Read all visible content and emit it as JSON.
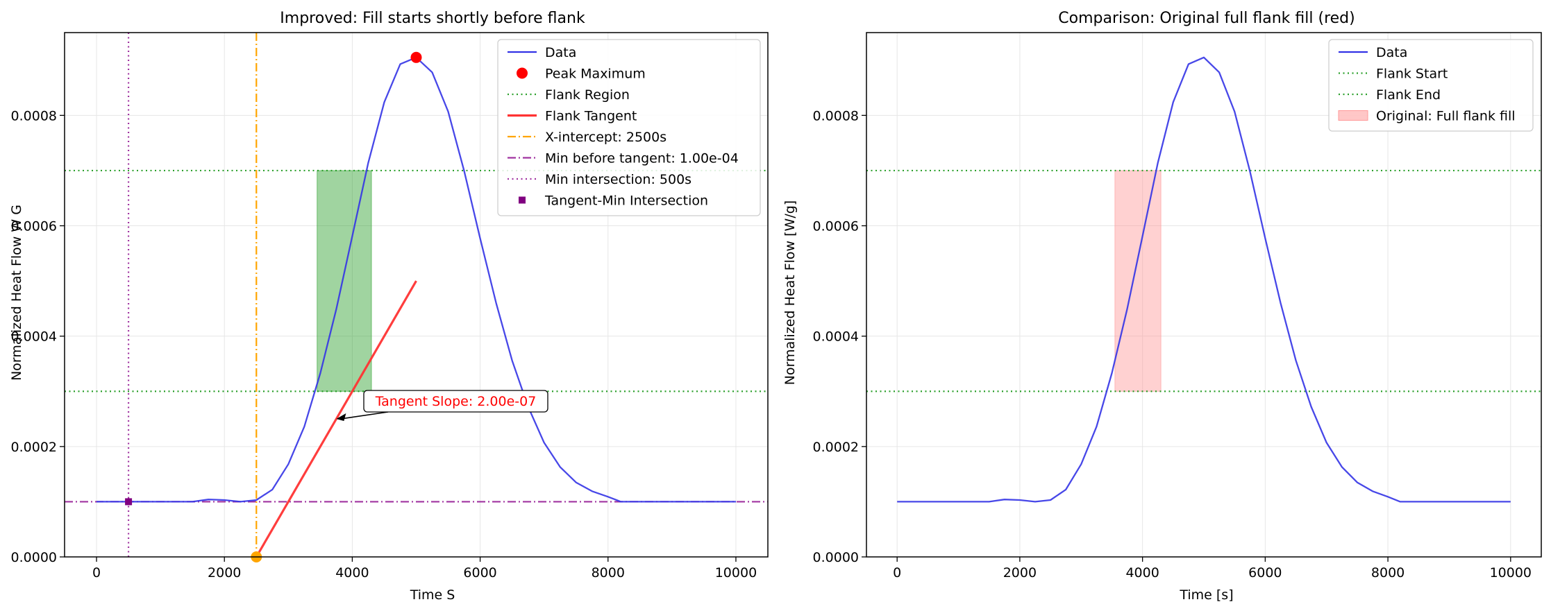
{
  "chart_data": [
    {
      "type": "line",
      "title": "Improved: Fill starts shortly before flank",
      "xlabel": "Time S",
      "ylabel": "Normalized Heat Flow W G",
      "xlim": [
        -500,
        10500
      ],
      "ylim": [
        0,
        0.00095
      ],
      "xticks": [
        "0",
        "2000",
        "4000",
        "6000",
        "8000",
        "10000"
      ],
      "yticks": [
        "0.0000",
        "0.0002",
        "0.0004",
        "0.0006",
        "0.0008"
      ],
      "grid": true,
      "legend_position": "top-right",
      "legend": [
        "Data",
        "Peak Maximum",
        "Flank Region",
        "Flank Tangent",
        "X-intercept: 2500s",
        "Min before tangent: 1.00e-04",
        "Min intersection: 500s",
        "Tangent-Min Intersection"
      ],
      "series": [
        {
          "name": "Data",
          "color": "#3333e6",
          "x": [
            0,
            250,
            500,
            750,
            1000,
            1250,
            1500,
            1750,
            2000,
            2250,
            2500,
            2750,
            3000,
            3250,
            3500,
            3750,
            4000,
            4250,
            4500,
            4750,
            5000,
            5250,
            5500,
            5750,
            6000,
            6250,
            6500,
            6750,
            7000,
            7250,
            7500,
            7750,
            8000,
            8200,
            8500,
            9000,
            9500,
            10000
          ],
          "y": [
            0.0001,
            0.0001,
            0.0001,
            0.0001,
            0.0001,
            0.0001,
            0.0001,
            0.000104,
            0.000103,
            0.0001,
            0.000103,
            0.000122,
            0.000168,
            0.000236,
            0.000333,
            0.000449,
            0.000581,
            0.000714,
            0.000824,
            0.000893,
            0.000905,
            0.000878,
            0.000807,
            0.000699,
            0.000577,
            0.00046,
            0.000356,
            0.000272,
            0.000207,
            0.000163,
            0.000135,
            0.000119,
            0.000109,
            0.0001,
            0.0001,
            0.0001,
            0.0001,
            0.0001
          ]
        },
        {
          "name": "Flank Tangent",
          "color": "#ff3333",
          "x": [
            2500,
            5000
          ],
          "y": [
            0,
            0.0005
          ]
        },
        {
          "name": "Peak Maximum",
          "color": "#ff0000",
          "x": [
            5000
          ],
          "y": [
            0.000905
          ]
        },
        {
          "name": "Tangent-Min Intersection",
          "color": "#800080",
          "x": [
            500
          ],
          "y": [
            0.0001
          ]
        }
      ],
      "hlines": [
        {
          "name": "Flank Region",
          "y": 0.0003,
          "color": "#2ca02c",
          "style": "dotted"
        },
        {
          "name": "Flank Region",
          "y": 0.0007,
          "color": "#2ca02c",
          "style": "dotted"
        },
        {
          "name": "Min before tangent: 1.00e-04",
          "y": 0.0001,
          "color": "#a033a0",
          "style": "dashdot"
        }
      ],
      "vlines": [
        {
          "name": "X-intercept: 2500s",
          "x": 2500,
          "color": "#ffa500",
          "style": "dashdot"
        },
        {
          "name": "Min intersection: 500s",
          "x": 500,
          "color": "#a033a0",
          "style": "dotted"
        }
      ],
      "fill": {
        "x0": 3450,
        "x1": 4300,
        "y0": 0.0003,
        "y1": 0.0007,
        "color": "#2ca02c"
      },
      "x_intercept_marker": {
        "x": 2500,
        "y": 0,
        "color": "#ffa500"
      },
      "annotation": {
        "text": "Tangent Slope: 2.00e-07",
        "x": 3750,
        "y": 0.00025
      }
    },
    {
      "type": "line",
      "title": "Comparison: Original full flank fill (red)",
      "xlabel": "Time [s]",
      "ylabel": "Normalized Heat Flow [W/g]",
      "xlim": [
        -500,
        10500
      ],
      "ylim": [
        0,
        0.00095
      ],
      "xticks": [
        "0",
        "2000",
        "4000",
        "6000",
        "8000",
        "10000"
      ],
      "yticks": [
        "0.0000",
        "0.0002",
        "0.0004",
        "0.0006",
        "0.0008"
      ],
      "grid": true,
      "legend_position": "top-right",
      "legend": [
        "Data",
        "Flank Start",
        "Flank End",
        "Original: Full flank fill"
      ],
      "series": [
        {
          "name": "Data",
          "color": "#3333e6",
          "x": [
            0,
            250,
            500,
            750,
            1000,
            1250,
            1500,
            1750,
            2000,
            2250,
            2500,
            2750,
            3000,
            3250,
            3500,
            3750,
            4000,
            4250,
            4500,
            4750,
            5000,
            5250,
            5500,
            5750,
            6000,
            6250,
            6500,
            6750,
            7000,
            7250,
            7500,
            7750,
            8000,
            8200,
            8500,
            9000,
            9500,
            10000
          ],
          "y": [
            0.0001,
            0.0001,
            0.0001,
            0.0001,
            0.0001,
            0.0001,
            0.0001,
            0.000104,
            0.000103,
            0.0001,
            0.000103,
            0.000122,
            0.000168,
            0.000236,
            0.000333,
            0.000449,
            0.000581,
            0.000714,
            0.000824,
            0.000893,
            0.000905,
            0.000878,
            0.000807,
            0.000699,
            0.000577,
            0.00046,
            0.000356,
            0.000272,
            0.000207,
            0.000163,
            0.000135,
            0.000119,
            0.000109,
            0.0001,
            0.0001,
            0.0001,
            0.0001,
            0.0001
          ]
        }
      ],
      "hlines": [
        {
          "name": "Flank Start",
          "y": 0.0003,
          "color": "#2ca02c",
          "style": "dotted"
        },
        {
          "name": "Flank End",
          "y": 0.0007,
          "color": "#2ca02c",
          "style": "dotted"
        }
      ],
      "vlines": [],
      "fill": {
        "x0": 3550,
        "x1": 4300,
        "y0": 0.0003,
        "y1": 0.0007,
        "color": "#ff9999"
      }
    }
  ]
}
